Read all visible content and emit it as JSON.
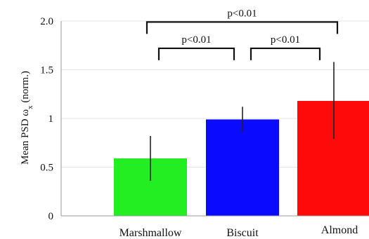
{
  "chart_data": {
    "type": "bar",
    "categories": [
      "Marshmallow",
      "Biscuit",
      "Almond"
    ],
    "values": [
      0.59,
      0.99,
      1.18
    ],
    "error_low": [
      0.36,
      0.86,
      0.79
    ],
    "error_high": [
      0.82,
      1.12,
      1.58
    ],
    "colors": [
      "#22ee22",
      "#0a0aff",
      "#ff0a0a"
    ],
    "ylabel_main": "Mean PSD ",
    "ylabel_symbol": "ω",
    "ylabel_subscript": "x",
    "ylabel_suffix": " (norm.)",
    "ylim": [
      0,
      2.0
    ],
    "yticks": [
      {
        "value": 0,
        "label": "0"
      },
      {
        "value": 0.5,
        "label": "0.5"
      },
      {
        "value": 1.0,
        "label": "1"
      },
      {
        "value": 1.5,
        "label": "1.5"
      },
      {
        "value": 2.0,
        "label": "2.0"
      }
    ],
    "grid": true,
    "significance": [
      {
        "from": 0,
        "to": 2,
        "label": "p<0.01",
        "y": 1.99
      },
      {
        "from": 0,
        "to": 1,
        "label": "p<0.01",
        "y": 1.72
      },
      {
        "from": 1,
        "to": 2,
        "label": "p<0.01",
        "y": 1.72
      }
    ]
  }
}
